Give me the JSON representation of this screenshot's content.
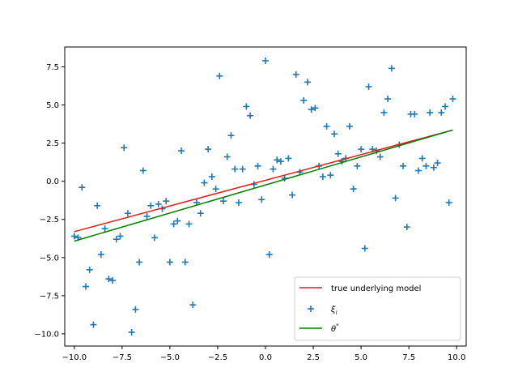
{
  "chart_data": {
    "type": "scatter",
    "xlim": [
      -10.5,
      10.5
    ],
    "ylim": [
      -10.8,
      8.8
    ],
    "x_ticks": [
      -10.0,
      -7.5,
      -5.0,
      -2.5,
      0.0,
      2.5,
      5.0,
      7.5,
      10.0
    ],
    "x_tick_labels": [
      "−10.0",
      "−7.5",
      "−5.0",
      "−2.5",
      "0.0",
      "2.5",
      "5.0",
      "7.5",
      "10.0"
    ],
    "y_ticks": [
      -10.0,
      -7.5,
      -5.0,
      -2.5,
      0.0,
      2.5,
      5.0,
      7.5
    ],
    "y_tick_labels": [
      "−10.0",
      "−7.5",
      "−5.0",
      "−2.5",
      "0.0",
      "2.5",
      "5.0",
      "7.5"
    ],
    "grid": false,
    "legend_position": "lower-right",
    "series": [
      {
        "name": "true underlying model",
        "kind": "line",
        "color": "#e41a1c",
        "x": [
          -10.0,
          9.8
        ],
        "y": [
          -3.3,
          3.36
        ]
      },
      {
        "name": "ξ_i",
        "kind": "scatter",
        "marker": "plus",
        "color": "#1f77b4",
        "x": [
          -10.0,
          -9.8,
          -9.6,
          -9.4,
          -9.2,
          -9.0,
          -8.8,
          -8.6,
          -8.4,
          -8.2,
          -8.0,
          -7.8,
          -7.6,
          -7.4,
          -7.2,
          -7.0,
          -6.8,
          -6.6,
          -6.4,
          -6.2,
          -6.0,
          -5.8,
          -5.6,
          -5.4,
          -5.2,
          -5.0,
          -4.8,
          -4.6,
          -4.4,
          -4.2,
          -4.0,
          -3.8,
          -3.6,
          -3.4,
          -3.2,
          -3.0,
          -2.8,
          -2.6,
          -2.4,
          -2.2,
          -2.0,
          -1.8,
          -1.6,
          -1.4,
          -1.2,
          -1.0,
          -0.8,
          -0.6,
          -0.4,
          -0.2,
          0.0,
          0.2,
          0.4,
          0.6,
          0.8,
          1.0,
          1.2,
          1.4,
          1.6,
          1.8,
          2.0,
          2.2,
          2.4,
          2.6,
          2.8,
          3.0,
          3.2,
          3.4,
          3.6,
          3.8,
          4.0,
          4.2,
          4.4,
          4.6,
          4.8,
          5.0,
          5.2,
          5.4,
          5.6,
          5.8,
          6.0,
          6.2,
          6.4,
          6.6,
          6.8,
          7.0,
          7.2,
          7.4,
          7.6,
          7.8,
          8.0,
          8.2,
          8.4,
          8.6,
          8.8,
          9.0,
          9.2,
          9.4,
          9.6,
          9.8
        ],
        "y": [
          -3.6,
          -3.7,
          -0.4,
          -6.9,
          -5.8,
          -9.4,
          -1.6,
          -4.8,
          -3.1,
          -6.4,
          -6.5,
          -3.8,
          -3.6,
          2.2,
          -2.1,
          -9.9,
          -8.4,
          -5.3,
          0.7,
          -2.3,
          -1.6,
          -3.7,
          -1.5,
          -1.8,
          -1.3,
          -5.3,
          -2.8,
          -2.6,
          2.0,
          -5.3,
          -2.8,
          -8.1,
          -1.4,
          -2.1,
          -0.1,
          2.1,
          0.3,
          -0.5,
          6.9,
          -1.3,
          1.6,
          3.0,
          0.8,
          -1.4,
          0.8,
          4.9,
          4.3,
          -0.2,
          1.0,
          -1.2,
          7.9,
          -4.8,
          0.8,
          1.4,
          1.3,
          0.2,
          1.5,
          -0.9,
          7.0,
          0.6,
          5.3,
          6.5,
          4.7,
          4.8,
          1.0,
          0.3,
          3.6,
          0.4,
          3.1,
          1.8,
          1.3,
          1.5,
          3.6,
          -0.5,
          1.0,
          2.1,
          -4.4,
          6.2,
          2.1,
          2.0,
          1.6,
          4.5,
          5.4,
          7.4,
          -1.1,
          2.4,
          1.0,
          -3.0,
          4.4,
          4.4,
          0.7,
          1.5,
          1.0,
          4.5,
          0.9,
          1.2,
          4.5,
          4.9,
          -1.4,
          5.4
        ]
      },
      {
        "name": "θ*",
        "kind": "line",
        "color": "#008000",
        "x": [
          -10.0,
          9.8
        ],
        "y": [
          -3.92,
          3.36
        ]
      }
    ]
  },
  "legend": {
    "items": [
      {
        "label": "true underlying model",
        "symbol": "line",
        "color": "#e41a1c"
      },
      {
        "label_base": "ξ",
        "label_sub": "i",
        "symbol": "plus",
        "color": "#1f77b4"
      },
      {
        "label_base": "θ",
        "label_sup": "*",
        "symbol": "line",
        "color": "#008000"
      }
    ]
  }
}
